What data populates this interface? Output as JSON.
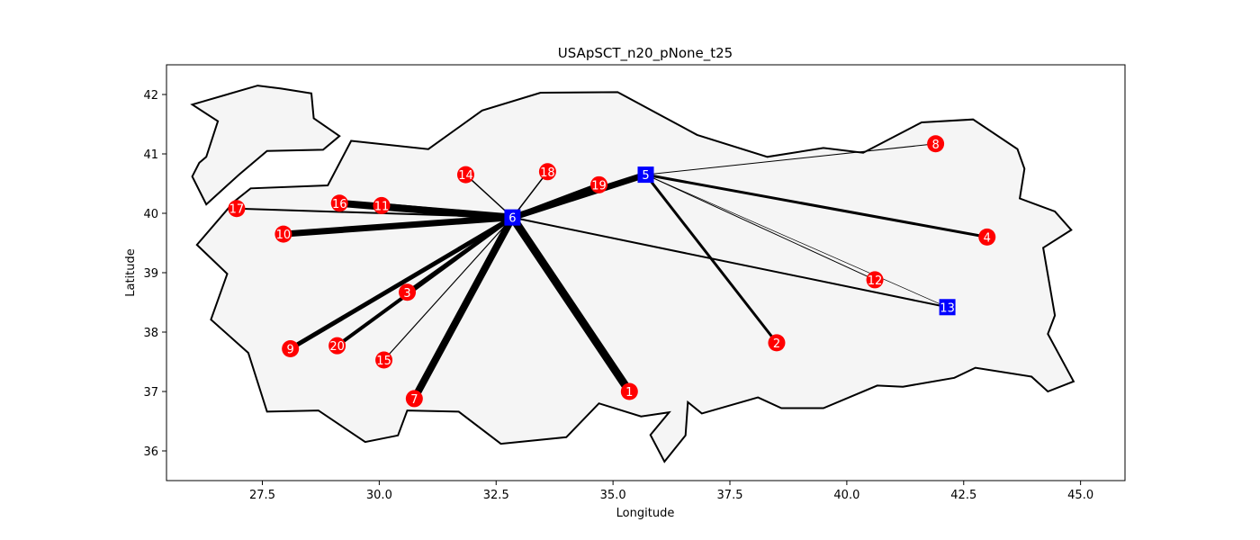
{
  "chart_data": {
    "type": "scatter",
    "title": "USApSCT_n20_pNone_t25",
    "xlabel": "Longitude",
    "ylabel": "Latitude",
    "xlim": [
      25.45,
      45.95
    ],
    "ylim": [
      35.5,
      42.5
    ],
    "x_ticks": [
      "27.5",
      "30.0",
      "32.5",
      "35.0",
      "37.5",
      "40.0",
      "42.5",
      "45.0"
    ],
    "y_ticks": [
      "36",
      "37",
      "38",
      "39",
      "40",
      "41",
      "42"
    ],
    "grid": false,
    "colors": {
      "customer": "#ff0000",
      "hub": "#0000ff",
      "land": "#f5f5f5",
      "border": "#000000"
    },
    "regions": [
      {
        "name": "",
        "points": [
          [
            26.0,
            41.83
          ],
          [
            26.55,
            41.55
          ],
          [
            26.3,
            40.95
          ],
          [
            26.15,
            40.85
          ],
          [
            26.0,
            40.62
          ],
          [
            26.3,
            40.15
          ],
          [
            27.0,
            40.65
          ],
          [
            27.6,
            41.05
          ],
          [
            28.8,
            41.07
          ],
          [
            29.15,
            41.3
          ],
          [
            28.6,
            41.6
          ],
          [
            28.55,
            42.02
          ],
          [
            27.9,
            42.1
          ],
          [
            27.4,
            42.15
          ],
          [
            26.0,
            41.83
          ]
        ]
      },
      {
        "name": "",
        "points": [
          [
            29.4,
            41.22
          ],
          [
            31.05,
            41.08
          ],
          [
            32.2,
            41.73
          ],
          [
            33.45,
            42.03
          ],
          [
            35.1,
            42.04
          ],
          [
            36.8,
            41.32
          ],
          [
            38.3,
            40.95
          ],
          [
            39.5,
            41.1
          ],
          [
            40.35,
            41.02
          ],
          [
            41.6,
            41.53
          ],
          [
            42.7,
            41.58
          ],
          [
            43.65,
            41.08
          ],
          [
            43.8,
            40.75
          ],
          [
            43.7,
            40.25
          ],
          [
            44.45,
            40.03
          ],
          [
            44.8,
            39.72
          ],
          [
            44.2,
            39.42
          ],
          [
            44.45,
            38.28
          ],
          [
            44.3,
            37.97
          ],
          [
            44.85,
            37.17
          ],
          [
            44.3,
            37.0
          ],
          [
            43.95,
            37.25
          ],
          [
            42.75,
            37.4
          ],
          [
            42.3,
            37.23
          ],
          [
            41.2,
            37.08
          ],
          [
            40.65,
            37.1
          ],
          [
            39.5,
            36.72
          ],
          [
            38.6,
            36.72
          ],
          [
            38.1,
            36.9
          ],
          [
            36.9,
            36.63
          ],
          [
            36.6,
            36.82
          ],
          [
            36.55,
            36.26
          ],
          [
            36.1,
            35.82
          ],
          [
            35.8,
            36.27
          ],
          [
            36.2,
            36.65
          ],
          [
            35.6,
            36.58
          ],
          [
            34.7,
            36.8
          ],
          [
            34.0,
            36.23
          ],
          [
            32.6,
            36.12
          ],
          [
            31.7,
            36.66
          ],
          [
            30.6,
            36.68
          ],
          [
            30.4,
            36.26
          ],
          [
            29.7,
            36.15
          ],
          [
            28.7,
            36.68
          ],
          [
            27.6,
            36.66
          ],
          [
            27.2,
            37.65
          ],
          [
            26.4,
            38.21
          ],
          [
            26.75,
            38.98
          ],
          [
            26.1,
            39.47
          ],
          [
            26.9,
            40.2
          ],
          [
            27.25,
            40.42
          ],
          [
            28.9,
            40.47
          ],
          [
            29.4,
            41.22
          ]
        ]
      }
    ],
    "points": [
      {
        "id": "1",
        "lon": 35.35,
        "lat": 37.0,
        "type": "customer"
      },
      {
        "id": "2",
        "lon": 38.5,
        "lat": 37.82,
        "type": "customer"
      },
      {
        "id": "3",
        "lon": 30.6,
        "lat": 38.67,
        "type": "customer"
      },
      {
        "id": "4",
        "lon": 43.0,
        "lat": 39.6,
        "type": "customer"
      },
      {
        "id": "5",
        "lon": 35.7,
        "lat": 40.65,
        "type": "hub"
      },
      {
        "id": "6",
        "lon": 32.85,
        "lat": 39.93,
        "type": "hub"
      },
      {
        "id": "7",
        "lon": 30.75,
        "lat": 36.88,
        "type": "customer"
      },
      {
        "id": "8",
        "lon": 41.9,
        "lat": 41.17,
        "type": "customer"
      },
      {
        "id": "9",
        "lon": 28.1,
        "lat": 37.72,
        "type": "customer"
      },
      {
        "id": "10",
        "lon": 27.95,
        "lat": 39.65,
        "type": "customer"
      },
      {
        "id": "11",
        "lon": 30.05,
        "lat": 40.13,
        "type": "customer"
      },
      {
        "id": "12",
        "lon": 40.6,
        "lat": 38.88,
        "type": "customer"
      },
      {
        "id": "13",
        "lon": 42.15,
        "lat": 38.42,
        "type": "hub"
      },
      {
        "id": "14",
        "lon": 31.85,
        "lat": 40.65,
        "type": "customer"
      },
      {
        "id": "15",
        "lon": 30.1,
        "lat": 37.53,
        "type": "customer"
      },
      {
        "id": "16",
        "lon": 29.15,
        "lat": 40.17,
        "type": "customer"
      },
      {
        "id": "17",
        "lon": 26.95,
        "lat": 40.08,
        "type": "customer"
      },
      {
        "id": "18",
        "lon": 33.6,
        "lat": 40.7,
        "type": "customer"
      },
      {
        "id": "19",
        "lon": 34.7,
        "lat": 40.48,
        "type": "customer"
      },
      {
        "id": "20",
        "lon": 29.1,
        "lat": 37.77,
        "type": "customer"
      }
    ],
    "edges": [
      {
        "from": "6",
        "to": "1",
        "weight": 9
      },
      {
        "from": "6",
        "to": "7",
        "weight": 8
      },
      {
        "from": "6",
        "to": "16",
        "weight": 8
      },
      {
        "from": "6",
        "to": "11",
        "weight": 6
      },
      {
        "from": "6",
        "to": "10",
        "weight": 7
      },
      {
        "from": "6",
        "to": "17",
        "weight": 2
      },
      {
        "from": "6",
        "to": "9",
        "weight": 5
      },
      {
        "from": "6",
        "to": "3",
        "weight": 4
      },
      {
        "from": "6",
        "to": "20",
        "weight": 4
      },
      {
        "from": "6",
        "to": "15",
        "weight": 1.2
      },
      {
        "from": "6",
        "to": "14",
        "weight": 1.5
      },
      {
        "from": "6",
        "to": "18",
        "weight": 1.5
      },
      {
        "from": "6",
        "to": "19",
        "weight": 5
      },
      {
        "from": "6",
        "to": "5",
        "weight": 7
      },
      {
        "from": "6",
        "to": "13",
        "weight": 2
      },
      {
        "from": "5",
        "to": "8",
        "weight": 1
      },
      {
        "from": "5",
        "to": "4",
        "weight": 3
      },
      {
        "from": "5",
        "to": "12",
        "weight": 1
      },
      {
        "from": "5",
        "to": "13",
        "weight": 0.7
      },
      {
        "from": "5",
        "to": "2",
        "weight": 3
      }
    ]
  }
}
